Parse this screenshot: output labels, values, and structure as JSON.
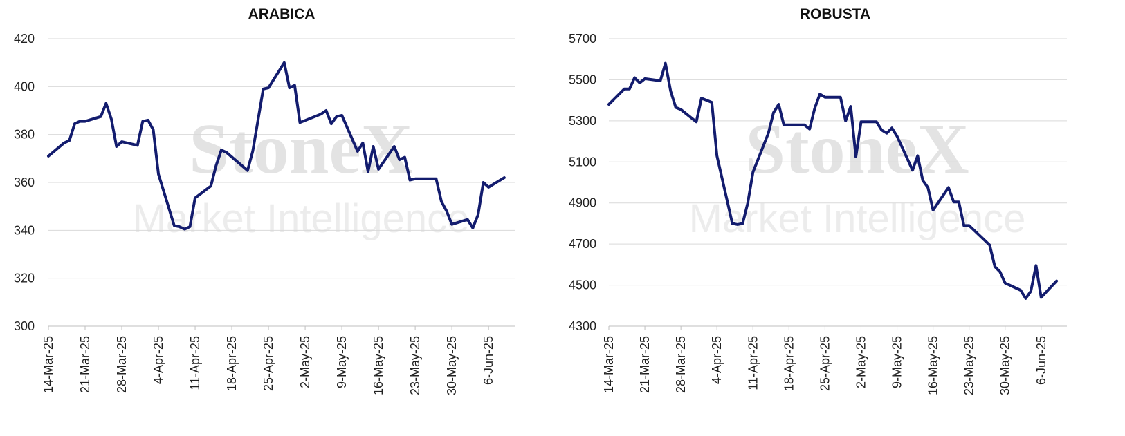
{
  "watermark": {
    "brand": "StoneX",
    "subtitle": "Market Intelligence"
  },
  "chart_data": [
    {
      "type": "line",
      "title": "ARABICA",
      "xlabel": "",
      "ylabel": "",
      "ylim": [
        300,
        420
      ],
      "y_ticks": [
        300,
        320,
        340,
        360,
        380,
        400,
        420
      ],
      "x_range": [
        "2025-03-14",
        "2025-06-11"
      ],
      "x_ticks": [
        {
          "date": "2025-03-14",
          "label": "14-Mar-25"
        },
        {
          "date": "2025-03-21",
          "label": "21-Mar-25"
        },
        {
          "date": "2025-03-28",
          "label": "28-Mar-25"
        },
        {
          "date": "2025-04-04",
          "label": "4-Apr-25"
        },
        {
          "date": "2025-04-11",
          "label": "11-Apr-25"
        },
        {
          "date": "2025-04-18",
          "label": "18-Apr-25"
        },
        {
          "date": "2025-04-25",
          "label": "25-Apr-25"
        },
        {
          "date": "2025-05-02",
          "label": "2-May-25"
        },
        {
          "date": "2025-05-09",
          "label": "9-May-25"
        },
        {
          "date": "2025-05-16",
          "label": "16-May-25"
        },
        {
          "date": "2025-05-23",
          "label": "23-May-25"
        },
        {
          "date": "2025-05-30",
          "label": "30-May-25"
        },
        {
          "date": "2025-06-06",
          "label": "6-Jun-25"
        }
      ],
      "grid": true,
      "legend": "none",
      "line_color": "#131c6e",
      "series": [
        {
          "points": [
            [
              "2025-03-14",
              371
            ],
            [
              "2025-03-17",
              376.5
            ],
            [
              "2025-03-18",
              377.5
            ],
            [
              "2025-03-19",
              384.5
            ],
            [
              "2025-03-20",
              385.5
            ],
            [
              "2025-03-21",
              385.5
            ],
            [
              "2025-03-24",
              387.5
            ],
            [
              "2025-03-25",
              393
            ],
            [
              "2025-03-26",
              386.5
            ],
            [
              "2025-03-27",
              375
            ],
            [
              "2025-03-28",
              377
            ],
            [
              "2025-03-31",
              375.5
            ],
            [
              "2025-04-01",
              385.5
            ],
            [
              "2025-04-02",
              386
            ],
            [
              "2025-04-03",
              382
            ],
            [
              "2025-04-04",
              363.5
            ],
            [
              "2025-04-07",
              342
            ],
            [
              "2025-04-08",
              341.5
            ],
            [
              "2025-04-09",
              340.5
            ],
            [
              "2025-04-10",
              341.5
            ],
            [
              "2025-04-11",
              353.5
            ],
            [
              "2025-04-14",
              358.5
            ],
            [
              "2025-04-15",
              367
            ],
            [
              "2025-04-16",
              373.5
            ],
            [
              "2025-04-17",
              372.5
            ],
            [
              "2025-04-21",
              365
            ],
            [
              "2025-04-22",
              373
            ],
            [
              "2025-04-23",
              386
            ],
            [
              "2025-04-24",
              399
            ],
            [
              "2025-04-25",
              399.5
            ],
            [
              "2025-04-28",
              410
            ],
            [
              "2025-04-29",
              399.5
            ],
            [
              "2025-04-30",
              400.5
            ],
            [
              "2025-05-01",
              385
            ],
            [
              "2025-05-05",
              388.5
            ],
            [
              "2025-05-06",
              390
            ],
            [
              "2025-05-07",
              384.5
            ],
            [
              "2025-05-08",
              387.5
            ],
            [
              "2025-05-09",
              388
            ],
            [
              "2025-05-12",
              373
            ],
            [
              "2025-05-13",
              376.5
            ],
            [
              "2025-05-14",
              364.5
            ],
            [
              "2025-05-15",
              375
            ],
            [
              "2025-05-16",
              365.5
            ],
            [
              "2025-05-19",
              375
            ],
            [
              "2025-05-20",
              369.5
            ],
            [
              "2025-05-21",
              370.5
            ],
            [
              "2025-05-22",
              361
            ],
            [
              "2025-05-23",
              361.5
            ],
            [
              "2025-05-27",
              361.5
            ],
            [
              "2025-05-28",
              352
            ],
            [
              "2025-05-29",
              348
            ],
            [
              "2025-05-30",
              342.5
            ],
            [
              "2025-06-02",
              344.5
            ],
            [
              "2025-06-03",
              341
            ],
            [
              "2025-06-04",
              346.5
            ],
            [
              "2025-06-05",
              360
            ],
            [
              "2025-06-06",
              358
            ],
            [
              "2025-06-09",
              362
            ]
          ]
        }
      ]
    },
    {
      "type": "line",
      "title": "ROBUSTA",
      "xlabel": "",
      "ylabel": "",
      "ylim": [
        4300,
        5700
      ],
      "y_ticks": [
        4300,
        4500,
        4700,
        4900,
        5100,
        5300,
        5500,
        5700
      ],
      "x_range": [
        "2025-03-14",
        "2025-06-11"
      ],
      "x_ticks": [
        {
          "date": "2025-03-14",
          "label": "14-Mar-25"
        },
        {
          "date": "2025-03-21",
          "label": "21-Mar-25"
        },
        {
          "date": "2025-03-28",
          "label": "28-Mar-25"
        },
        {
          "date": "2025-04-04",
          "label": "4-Apr-25"
        },
        {
          "date": "2025-04-11",
          "label": "11-Apr-25"
        },
        {
          "date": "2025-04-18",
          "label": "18-Apr-25"
        },
        {
          "date": "2025-04-25",
          "label": "25-Apr-25"
        },
        {
          "date": "2025-05-02",
          "label": "2-May-25"
        },
        {
          "date": "2025-05-09",
          "label": "9-May-25"
        },
        {
          "date": "2025-05-16",
          "label": "16-May-25"
        },
        {
          "date": "2025-05-23",
          "label": "23-May-25"
        },
        {
          "date": "2025-05-30",
          "label": "30-May-25"
        },
        {
          "date": "2025-06-06",
          "label": "6-Jun-25"
        }
      ],
      "grid": true,
      "legend": "none",
      "line_color": "#131c6e",
      "series": [
        {
          "points": [
            [
              "2025-03-14",
              5380
            ],
            [
              "2025-03-17",
              5455
            ],
            [
              "2025-03-18",
              5455
            ],
            [
              "2025-03-19",
              5510
            ],
            [
              "2025-03-20",
              5485
            ],
            [
              "2025-03-21",
              5505
            ],
            [
              "2025-03-24",
              5495
            ],
            [
              "2025-03-25",
              5580
            ],
            [
              "2025-03-26",
              5445
            ],
            [
              "2025-03-27",
              5365
            ],
            [
              "2025-03-28",
              5355
            ],
            [
              "2025-03-31",
              5295
            ],
            [
              "2025-04-01",
              5410
            ],
            [
              "2025-04-03",
              5390
            ],
            [
              "2025-04-04",
              5130
            ],
            [
              "2025-04-07",
              4800
            ],
            [
              "2025-04-08",
              4795
            ],
            [
              "2025-04-09",
              4800
            ],
            [
              "2025-04-10",
              4900
            ],
            [
              "2025-04-11",
              5050
            ],
            [
              "2025-04-14",
              5240
            ],
            [
              "2025-04-15",
              5340
            ],
            [
              "2025-04-16",
              5380
            ],
            [
              "2025-04-17",
              5280
            ],
            [
              "2025-04-21",
              5280
            ],
            [
              "2025-04-22",
              5260
            ],
            [
              "2025-04-23",
              5360
            ],
            [
              "2025-04-24",
              5430
            ],
            [
              "2025-04-25",
              5415
            ],
            [
              "2025-04-28",
              5415
            ],
            [
              "2025-04-29",
              5300
            ],
            [
              "2025-04-30",
              5370
            ],
            [
              "2025-05-01",
              5125
            ],
            [
              "2025-05-02",
              5295
            ],
            [
              "2025-05-05",
              5295
            ],
            [
              "2025-05-06",
              5255
            ],
            [
              "2025-05-07",
              5240
            ],
            [
              "2025-05-08",
              5265
            ],
            [
              "2025-05-09",
              5225
            ],
            [
              "2025-05-12",
              5060
            ],
            [
              "2025-05-13",
              5130
            ],
            [
              "2025-05-14",
              5010
            ],
            [
              "2025-05-15",
              4975
            ],
            [
              "2025-05-16",
              4865
            ],
            [
              "2025-05-19",
              4975
            ],
            [
              "2025-05-20",
              4905
            ],
            [
              "2025-05-21",
              4905
            ],
            [
              "2025-05-22",
              4790
            ],
            [
              "2025-05-23",
              4790
            ],
            [
              "2025-05-27",
              4695
            ],
            [
              "2025-05-28",
              4590
            ],
            [
              "2025-05-29",
              4565
            ],
            [
              "2025-05-30",
              4510
            ],
            [
              "2025-06-02",
              4475
            ],
            [
              "2025-06-03",
              4435
            ],
            [
              "2025-06-04",
              4470
            ],
            [
              "2025-06-05",
              4595
            ],
            [
              "2025-06-06",
              4440
            ],
            [
              "2025-06-09",
              4520
            ]
          ]
        }
      ]
    }
  ]
}
